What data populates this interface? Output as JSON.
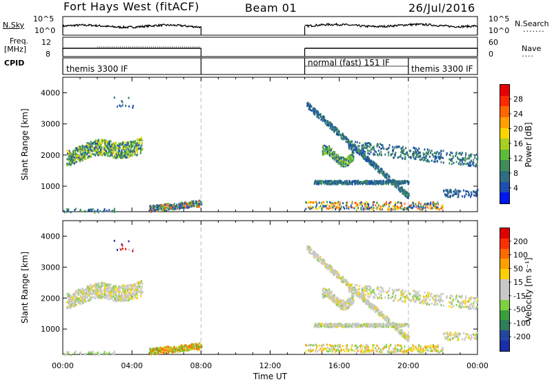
{
  "header": {
    "radar_title": "Fort Hays West (fitACF)",
    "beam": "Beam 01",
    "date": "26/Jul/2016"
  },
  "noise_panel": {
    "left_label": "N.Sky",
    "right_label": "N.Search",
    "left_ticks": [
      "10^5",
      "10^0"
    ],
    "right_ticks": [
      "10^5",
      "10^0"
    ]
  },
  "freq_panel": {
    "left_label_top": "Freq.",
    "left_label_bottom": "[MHz]",
    "right_label": "Nave",
    "left_ticks": [
      "12",
      "8"
    ],
    "right_ticks": [
      "60",
      "0"
    ]
  },
  "cpid_panel": {
    "label": "CPID",
    "segments": [
      {
        "name": "themis 3300 IF",
        "start_hour": 0,
        "end_hour": 8
      },
      {
        "name": "normal (fast) 151 IF",
        "start_hour": 14,
        "end_hour": 20
      },
      {
        "name": "themis 3300 IF",
        "start_hour": 20,
        "end_hour": 24
      }
    ]
  },
  "chart_data": [
    {
      "type": "heatmap",
      "parameter": "Power",
      "ylabel": "Slant Range [km]",
      "xlabel": "",
      "x_range_hours": [
        0,
        24
      ],
      "ylim": [
        180,
        4500
      ],
      "y_ticks": [
        "1000",
        "2000",
        "3000",
        "4000"
      ],
      "x_ticks": [
        "00:00",
        "04:00",
        "08:00",
        "12:00",
        "16:00",
        "20:00",
        "00:00"
      ],
      "colorbar_label": "Power [dB]",
      "colorbar_ticks": [
        "4",
        "8",
        "12",
        "16",
        "20",
        "24",
        "28"
      ],
      "colorbar_colors": [
        "#0018f0",
        "#1e4fb0",
        "#2f6e80",
        "#3f8e5a",
        "#5dbb3a",
        "#a8d020",
        "#ffd500",
        "#ffa000",
        "#ff6600",
        "#ff2a00",
        "#e80000"
      ],
      "data_gaps_hours": [
        [
          8,
          14
        ]
      ]
    },
    {
      "type": "heatmap",
      "parameter": "Velocity",
      "ylabel": "Slant Range [km]",
      "xlabel": "Time UT",
      "x_range_hours": [
        0,
        24
      ],
      "ylim": [
        180,
        4500
      ],
      "y_ticks": [
        "1000",
        "2000",
        "3000",
        "4000"
      ],
      "x_ticks": [
        "00:00",
        "04:00",
        "08:00",
        "12:00",
        "16:00",
        "20:00",
        "00:00"
      ],
      "colorbar_label": "Velocity [m s^-1]",
      "colorbar_ticks": [
        "200",
        "100",
        "50",
        "15",
        "-15",
        "-50",
        "-100",
        "-200"
      ],
      "colorbar_colors": [
        "#1a2ea8",
        "#23479f",
        "#2f7d5a",
        "#3c9e3c",
        "#7fd040",
        "#c8c8c8",
        "#c8c8c8",
        "#ffd000",
        "#ffa000",
        "#ff6a00",
        "#ff3000",
        "#e00000"
      ],
      "data_gaps_hours": [
        [
          8,
          14
        ]
      ]
    }
  ]
}
